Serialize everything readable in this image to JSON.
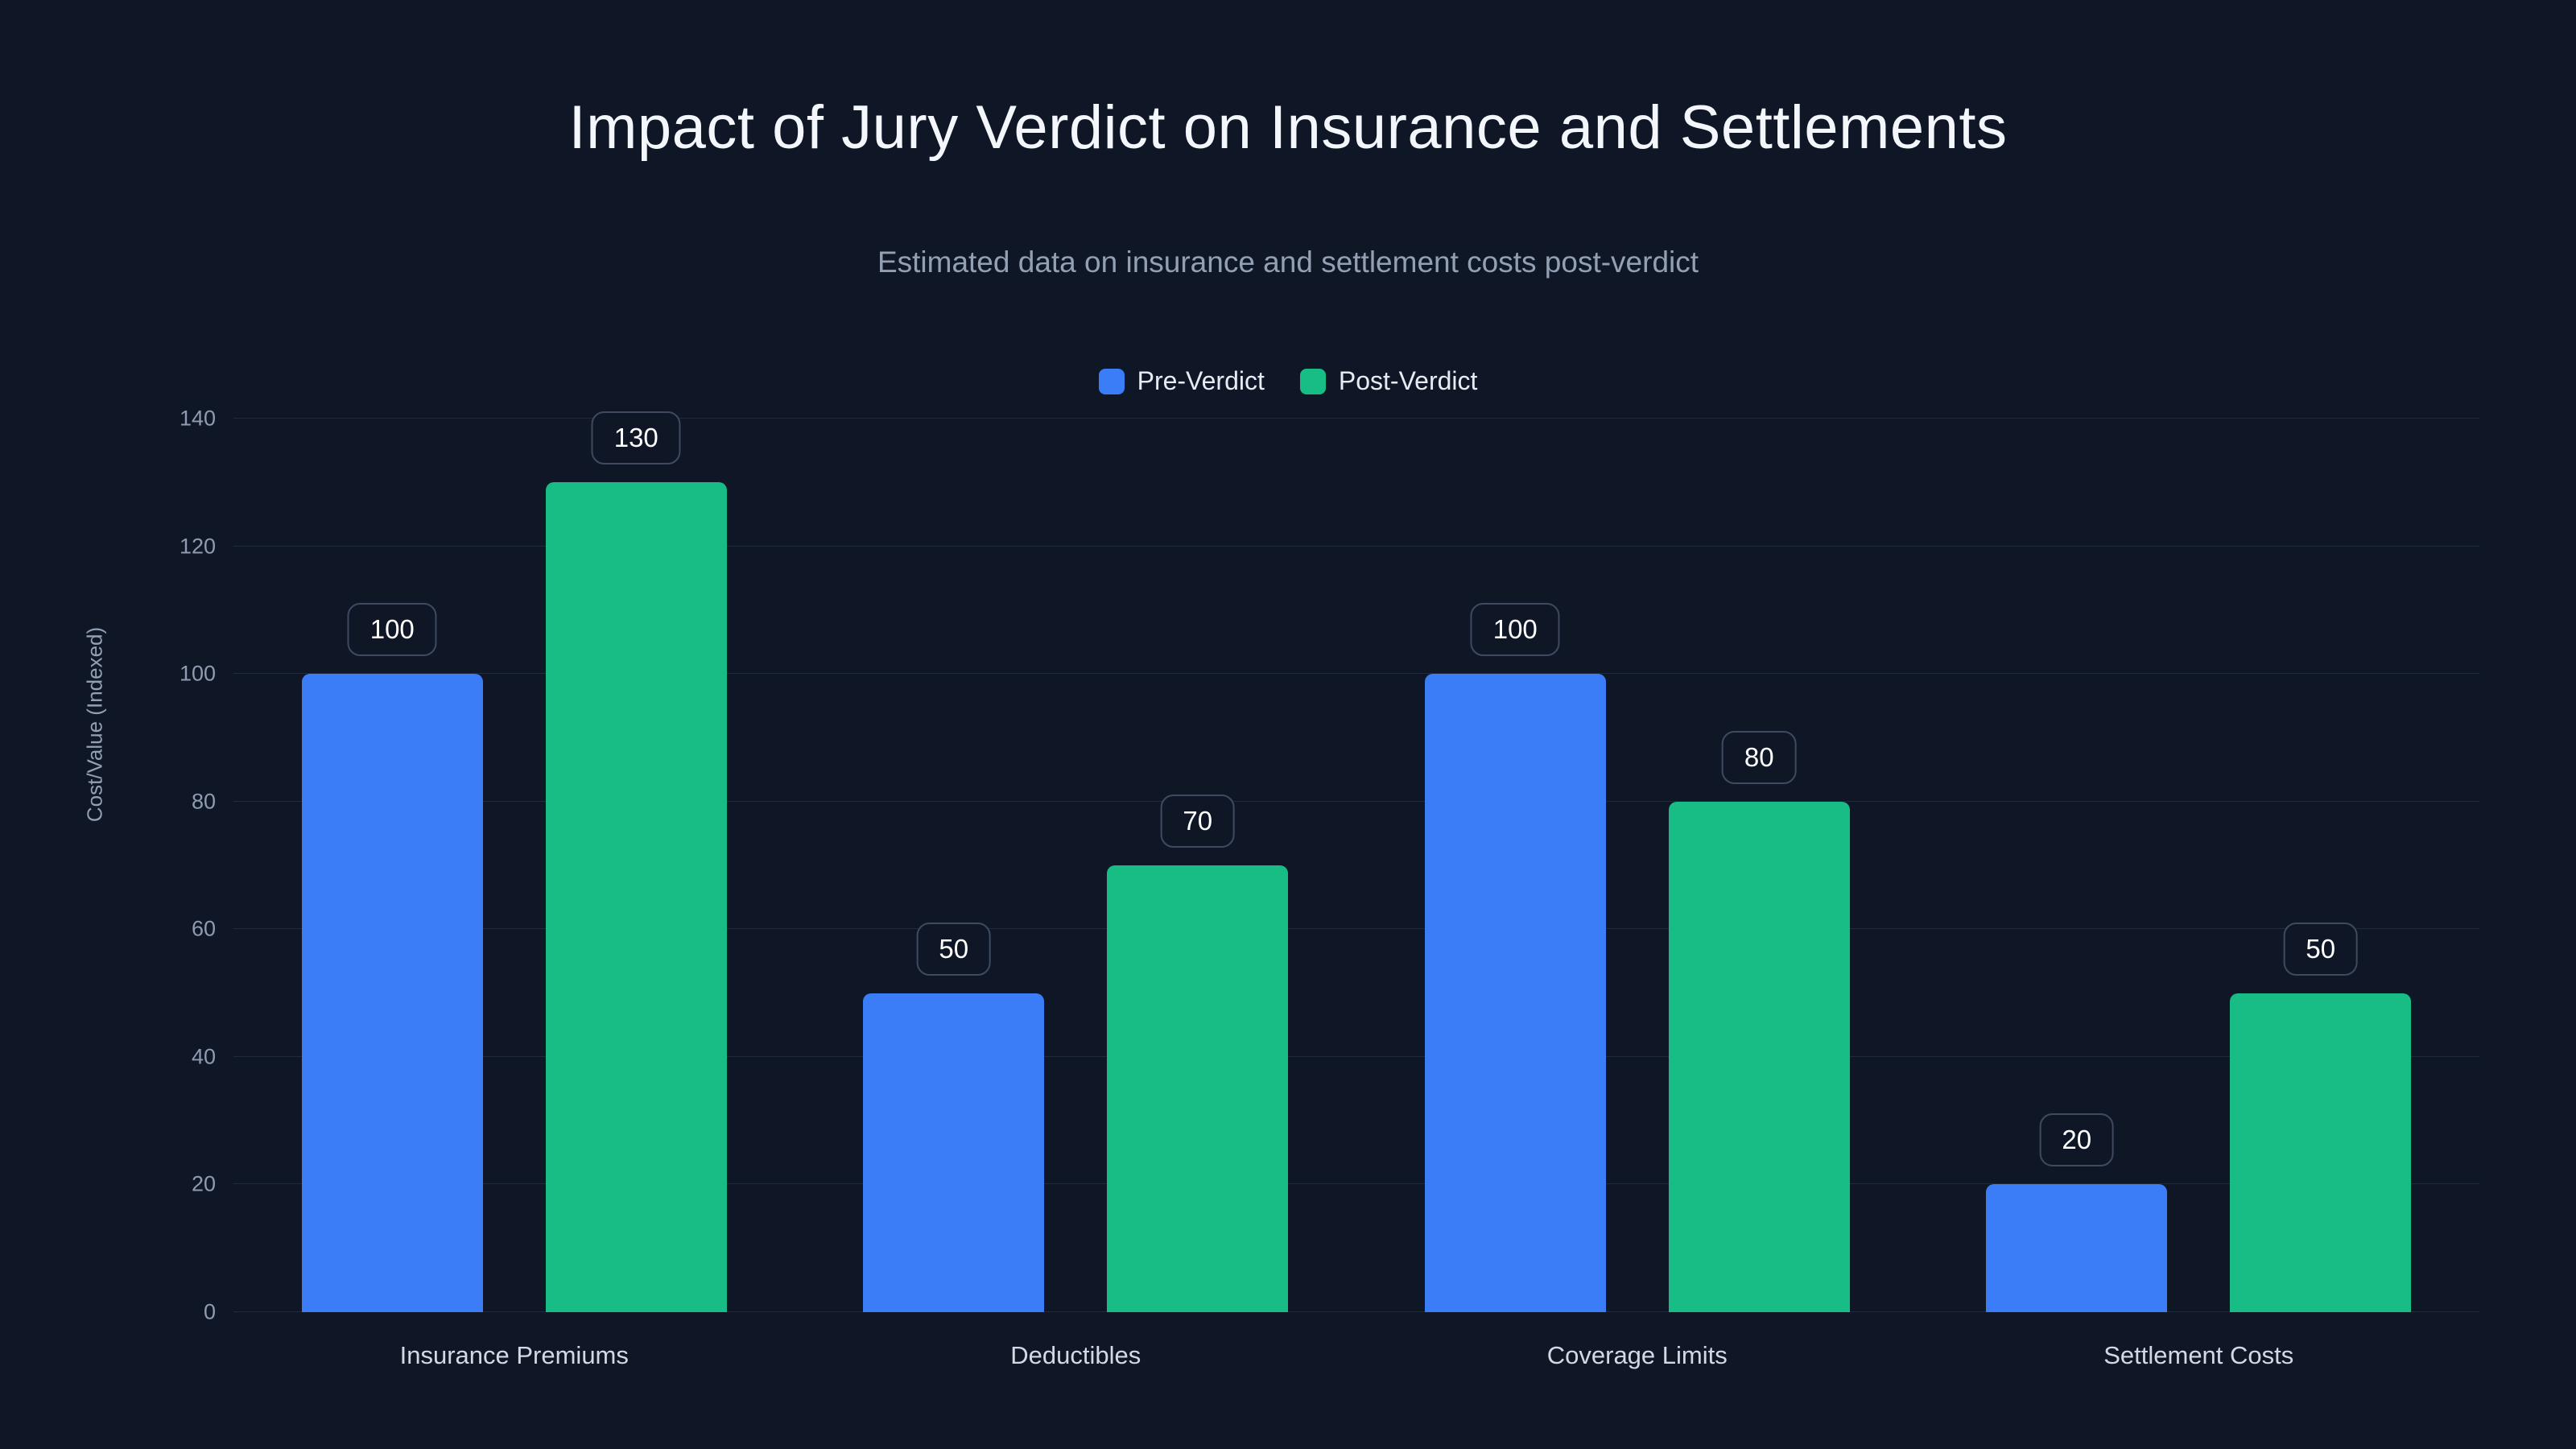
{
  "page": {
    "background_color": "#0f1727"
  },
  "title": "Impact of Jury Verdict on Insurance and Settlements",
  "subtitle": "Estimated data on insurance and settlement costs post-verdict",
  "chart_data": {
    "type": "bar",
    "title": "Impact of Jury Verdict on Insurance and Settlements",
    "subtitle": "Estimated data on insurance and settlement costs post-verdict",
    "categories": [
      "Insurance Premiums",
      "Deductibles",
      "Coverage Limits",
      "Settlement Costs"
    ],
    "series": [
      {
        "name": "Pre-Verdict",
        "color": "#3b7df6",
        "values": [
          100,
          50,
          100,
          20
        ]
      },
      {
        "name": "Post-Verdict",
        "color": "#17bd85",
        "values": [
          130,
          70,
          80,
          50
        ]
      }
    ],
    "xlabel": "",
    "ylabel": "Cost/Value (Indexed)",
    "ylim": [
      0,
      140
    ],
    "ytick_step": 20,
    "ytick_labels": [
      "0",
      "20",
      "40",
      "60",
      "80",
      "100",
      "120",
      "140"
    ],
    "grid": true,
    "legend_position": "top-center",
    "value_labels": true
  }
}
